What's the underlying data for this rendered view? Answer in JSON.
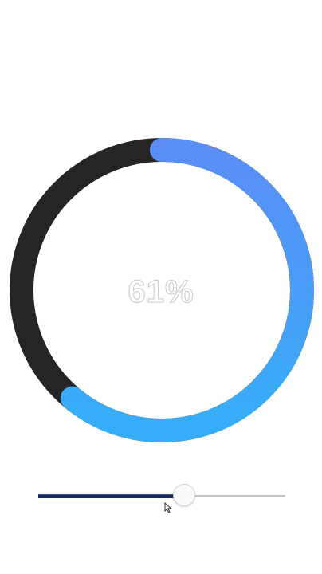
{
  "progress": {
    "value_percent": 61,
    "label": "61%"
  },
  "ring": {
    "track_color": "#252525",
    "gradient_start_color": "#5a8df5",
    "gradient_end_color": "#36aef7"
  },
  "slider": {
    "value_fraction": 0.59,
    "fill_color": "#1b2a55",
    "track_color": "#c4c4c4"
  },
  "cursor": {
    "icon": "mouse-pointer-icon"
  }
}
